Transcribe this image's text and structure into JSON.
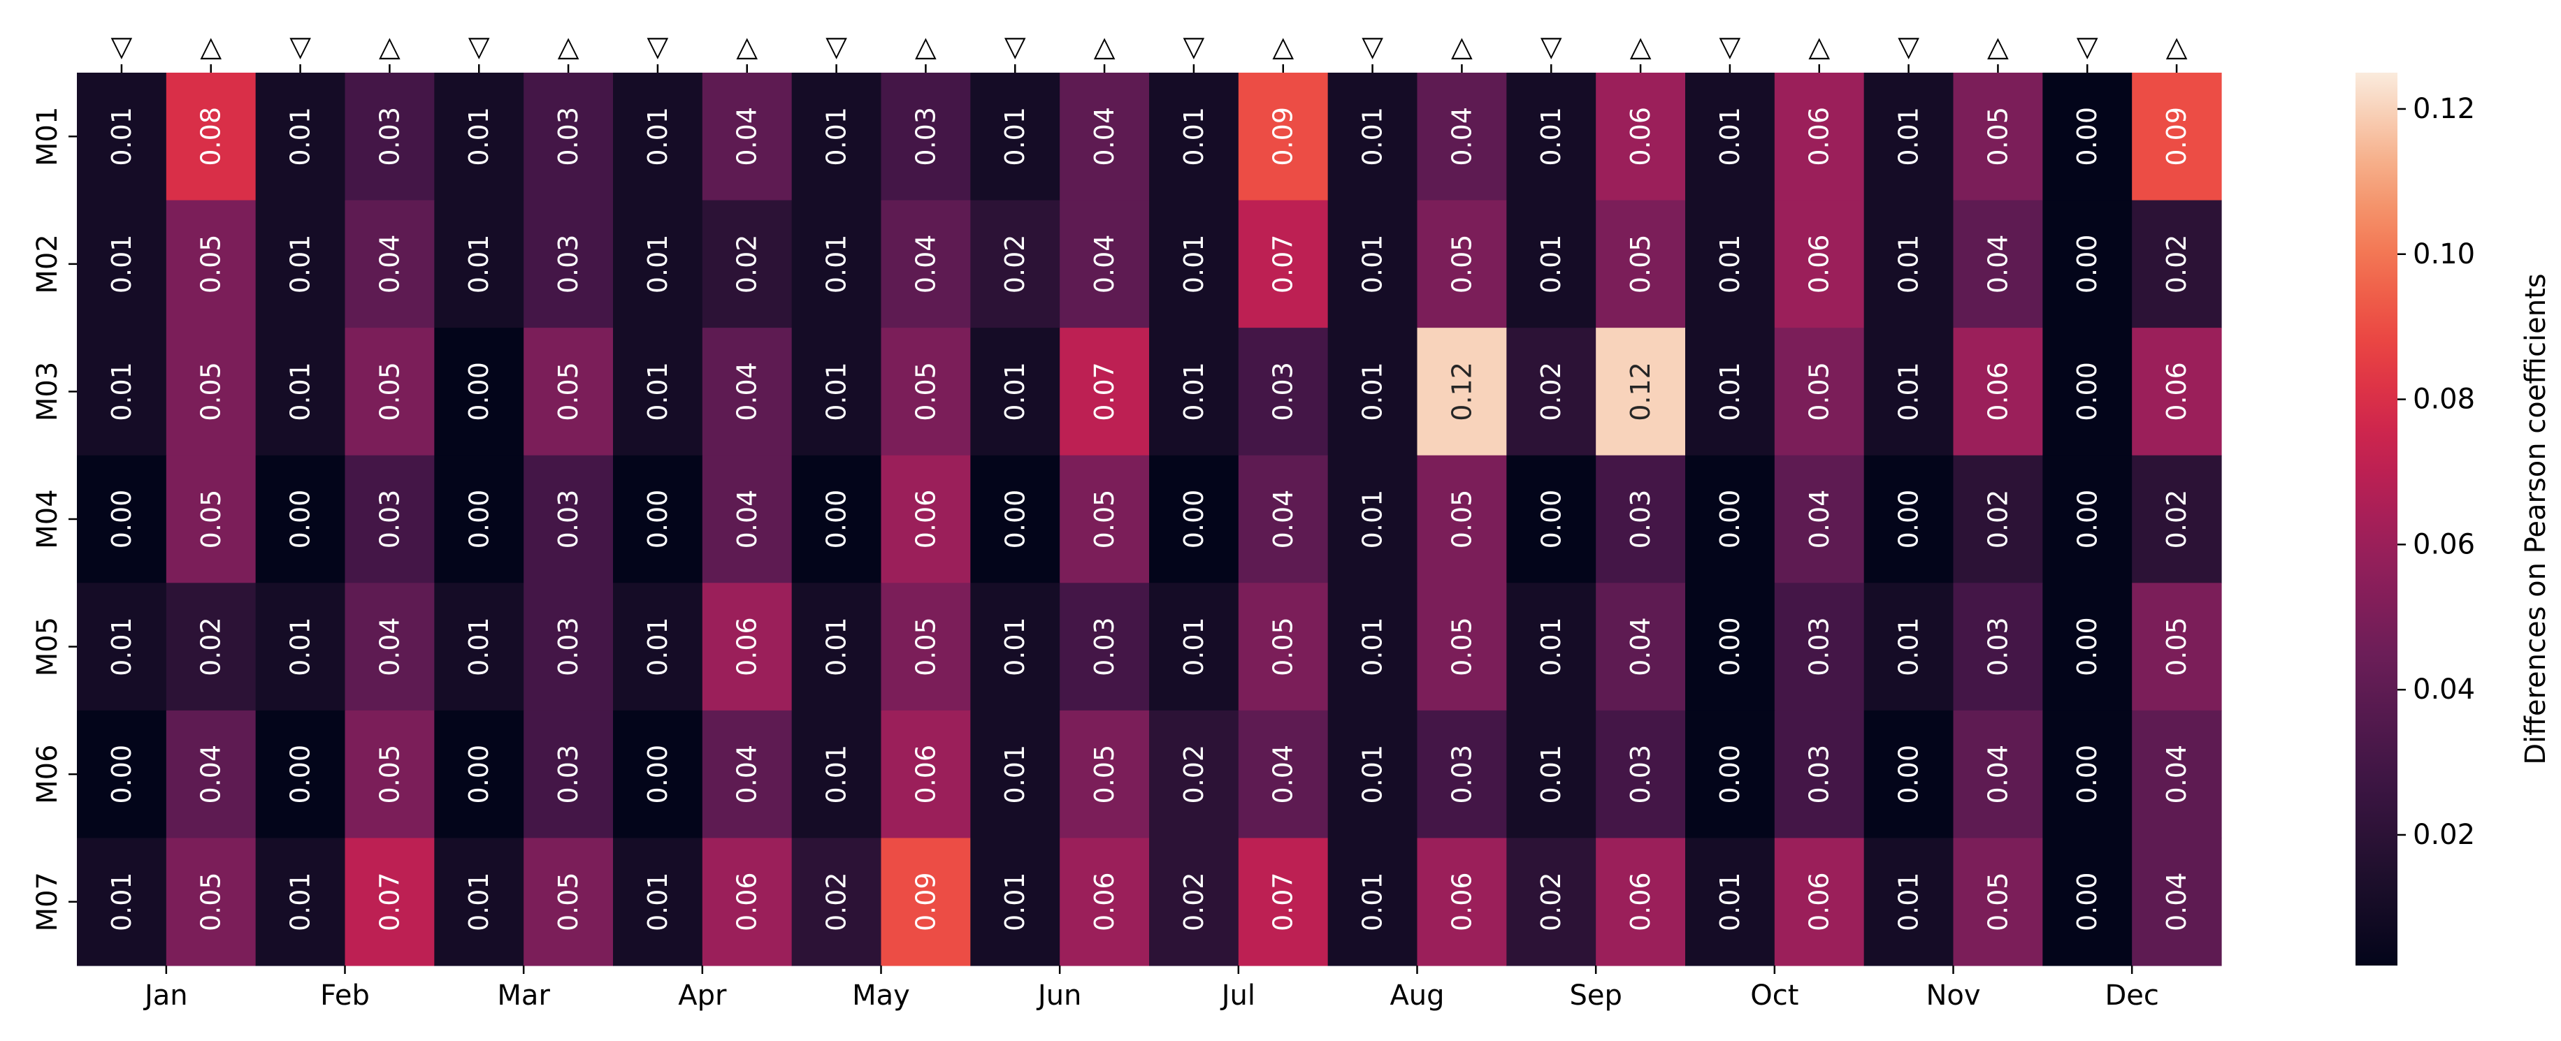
{
  "chart_data": {
    "type": "heatmap",
    "title": "",
    "xlabel": "",
    "ylabel": "",
    "rows": [
      "M01",
      "M02",
      "M03",
      "M04",
      "M05",
      "M06",
      "M07"
    ],
    "months": [
      "Jan",
      "Feb",
      "Mar",
      "Apr",
      "May",
      "Jun",
      "Jul",
      "Aug",
      "Sep",
      "Oct",
      "Nov",
      "Dec"
    ],
    "column_markers": [
      "▽",
      "△",
      "▽",
      "△",
      "▽",
      "△",
      "▽",
      "△",
      "▽",
      "△",
      "▽",
      "△",
      "▽",
      "△",
      "▽",
      "△",
      "▽",
      "△",
      "▽",
      "△",
      "▽",
      "△",
      "▽",
      "△"
    ],
    "values": [
      [
        0.01,
        0.08,
        0.01,
        0.03,
        0.01,
        0.03,
        0.01,
        0.04,
        0.01,
        0.03,
        0.01,
        0.04,
        0.01,
        0.09,
        0.01,
        0.04,
        0.01,
        0.06,
        0.01,
        0.06,
        0.01,
        0.05,
        0.0,
        0.09
      ],
      [
        0.01,
        0.05,
        0.01,
        0.04,
        0.01,
        0.03,
        0.01,
        0.02,
        0.01,
        0.04,
        0.02,
        0.04,
        0.01,
        0.07,
        0.01,
        0.05,
        0.01,
        0.05,
        0.01,
        0.06,
        0.01,
        0.04,
        0.0,
        0.02
      ],
      [
        0.01,
        0.05,
        0.01,
        0.05,
        0.0,
        0.05,
        0.01,
        0.04,
        0.01,
        0.05,
        0.01,
        0.07,
        0.01,
        0.03,
        0.01,
        0.12,
        0.02,
        0.12,
        0.01,
        0.05,
        0.01,
        0.06,
        0.0,
        0.06
      ],
      [
        0.0,
        0.05,
        0.0,
        0.03,
        0.0,
        0.03,
        0.0,
        0.04,
        0.0,
        0.06,
        0.0,
        0.05,
        0.0,
        0.04,
        0.01,
        0.05,
        0.0,
        0.03,
        0.0,
        0.04,
        0.0,
        0.02,
        0.0,
        0.02
      ],
      [
        0.01,
        0.02,
        0.01,
        0.04,
        0.01,
        0.03,
        0.01,
        0.06,
        0.01,
        0.05,
        0.01,
        0.03,
        0.01,
        0.05,
        0.01,
        0.05,
        0.01,
        0.04,
        0.0,
        0.03,
        0.01,
        0.03,
        0.0,
        0.05
      ],
      [
        0.0,
        0.04,
        0.0,
        0.05,
        0.0,
        0.03,
        0.0,
        0.04,
        0.01,
        0.06,
        0.01,
        0.05,
        0.02,
        0.04,
        0.01,
        0.03,
        0.01,
        0.03,
        0.0,
        0.03,
        0.0,
        0.04,
        0.0,
        0.04
      ],
      [
        0.01,
        0.05,
        0.01,
        0.07,
        0.01,
        0.05,
        0.01,
        0.06,
        0.02,
        0.09,
        0.01,
        0.06,
        0.02,
        0.07,
        0.01,
        0.06,
        0.02,
        0.06,
        0.01,
        0.06,
        0.01,
        0.05,
        0.0,
        0.04
      ]
    ],
    "colorbar": {
      "label": "Differences on Pearson coefficients",
      "ticks": [
        "0.02",
        "0.04",
        "0.06",
        "0.08",
        "0.10",
        "0.12"
      ],
      "range": [
        0.002,
        0.125
      ],
      "colormap": "rocket"
    },
    "grid": false,
    "legend": "none"
  }
}
